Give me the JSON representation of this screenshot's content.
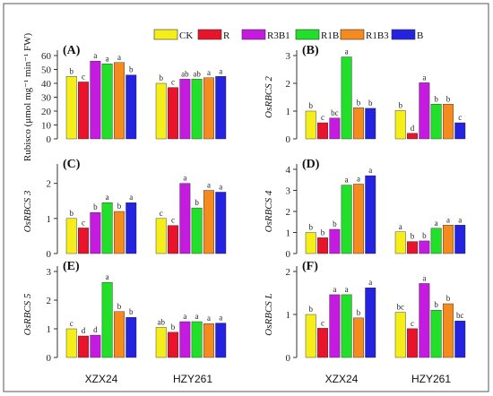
{
  "legend": [
    {
      "name": "CK",
      "color": "#f5ee1a"
    },
    {
      "name": "R",
      "color": "#e8142b"
    },
    {
      "name": "R3B1",
      "color": "#c51be0"
    },
    {
      "name": "R1B1",
      "color": "#22e02a"
    },
    {
      "name": "R1B3",
      "color": "#f58a1f"
    },
    {
      "name": "B",
      "color": "#2323e0"
    }
  ],
  "x_categories": [
    "XZX24",
    "HZY261"
  ],
  "chart_data": [
    {
      "type": "bar",
      "panel": "(A)",
      "ylabel": "Rubisco (μmol mg⁻¹ min⁻¹ FW)",
      "ylabel_italic": false,
      "categories": [
        "XZX24",
        "HZY261"
      ],
      "ylim": [
        0,
        60
      ],
      "yticks": [
        0,
        10,
        20,
        30,
        40,
        50,
        60
      ],
      "series": [
        {
          "name": "CK",
          "values": [
            45,
            40
          ],
          "letters": [
            "b",
            "b"
          ]
        },
        {
          "name": "R",
          "values": [
            41,
            37
          ],
          "letters": [
            "c",
            "c"
          ]
        },
        {
          "name": "R3B1",
          "values": [
            56,
            43
          ],
          "letters": [
            "a",
            "ab"
          ]
        },
        {
          "name": "R1B1",
          "values": [
            54,
            43
          ],
          "letters": [
            "a",
            "ab"
          ]
        },
        {
          "name": "R1B3",
          "values": [
            55,
            44
          ],
          "letters": [
            "a",
            "a"
          ]
        },
        {
          "name": "B",
          "values": [
            46,
            45
          ],
          "letters": [
            "b",
            "a"
          ]
        }
      ]
    },
    {
      "type": "bar",
      "panel": "(B)",
      "ylabel": "OsRBCS 2",
      "ylabel_italic": true,
      "categories": [
        "XZX24",
        "HZY261"
      ],
      "ylim": [
        0,
        3
      ],
      "yticks": [
        0,
        1,
        2,
        3
      ],
      "series": [
        {
          "name": "CK",
          "values": [
            1.0,
            1.02
          ],
          "letters": [
            "b",
            "b"
          ]
        },
        {
          "name": "R",
          "values": [
            0.58,
            0.2
          ],
          "letters": [
            "c",
            "d"
          ]
        },
        {
          "name": "R3B1",
          "values": [
            0.75,
            2.02
          ],
          "letters": [
            "bc",
            "a"
          ]
        },
        {
          "name": "R1B1",
          "values": [
            2.95,
            1.25
          ],
          "letters": [
            "a",
            "b"
          ]
        },
        {
          "name": "R1B3",
          "values": [
            1.12,
            1.25
          ],
          "letters": [
            "b",
            "b"
          ]
        },
        {
          "name": "B",
          "values": [
            1.1,
            0.58
          ],
          "letters": [
            "b",
            "c"
          ]
        }
      ]
    },
    {
      "type": "bar",
      "panel": "(C)",
      "ylabel": "OsRBCS 3",
      "ylabel_italic": true,
      "categories": [
        "XZX24",
        "HZY261"
      ],
      "ylim": [
        0,
        2.4
      ],
      "yticks": [
        0,
        1,
        2
      ],
      "series": [
        {
          "name": "CK",
          "values": [
            1.0,
            1.0
          ],
          "letters": [
            "b",
            "c"
          ]
        },
        {
          "name": "R",
          "values": [
            0.73,
            0.8
          ],
          "letters": [
            "c",
            "c"
          ]
        },
        {
          "name": "R3B1",
          "values": [
            1.17,
            2.0
          ],
          "letters": [
            "b",
            "a"
          ]
        },
        {
          "name": "R1B1",
          "values": [
            1.45,
            1.3
          ],
          "letters": [
            "a",
            "b"
          ]
        },
        {
          "name": "R1B3",
          "values": [
            1.2,
            1.8
          ],
          "letters": [
            "b",
            "a"
          ]
        },
        {
          "name": "B",
          "values": [
            1.45,
            1.75
          ],
          "letters": [
            "a",
            "a"
          ]
        }
      ]
    },
    {
      "type": "bar",
      "panel": "(D)",
      "ylabel": "OsRBCS 4",
      "ylabel_italic": true,
      "categories": [
        "XZX24",
        "HZY261"
      ],
      "ylim": [
        0,
        4
      ],
      "yticks": [
        0,
        1,
        2,
        3,
        4
      ],
      "series": [
        {
          "name": "CK",
          "values": [
            1.0,
            1.03
          ],
          "letters": [
            "b",
            "a"
          ]
        },
        {
          "name": "R",
          "values": [
            0.75,
            0.57
          ],
          "letters": [
            "b",
            "b"
          ]
        },
        {
          "name": "R3B1",
          "values": [
            1.15,
            0.6
          ],
          "letters": [
            "b",
            "b"
          ]
        },
        {
          "name": "R1B1",
          "values": [
            3.25,
            1.2
          ],
          "letters": [
            "a",
            "a"
          ]
        },
        {
          "name": "R1B3",
          "values": [
            3.3,
            1.35
          ],
          "letters": [
            "a",
            "a"
          ]
        },
        {
          "name": "B",
          "values": [
            3.7,
            1.35
          ],
          "letters": [
            "a",
            "a"
          ]
        }
      ]
    },
    {
      "type": "bar",
      "panel": "(E)",
      "ylabel": "OsRBCS 5",
      "ylabel_italic": true,
      "categories": [
        "XZX24",
        "HZY261"
      ],
      "ylim": [
        0,
        3
      ],
      "yticks": [
        0,
        1,
        2,
        3
      ],
      "series": [
        {
          "name": "CK",
          "values": [
            1.0,
            1.05
          ],
          "letters": [
            "c",
            "ab"
          ]
        },
        {
          "name": "R",
          "values": [
            0.75,
            0.88
          ],
          "letters": [
            "d",
            "b"
          ]
        },
        {
          "name": "R3B1",
          "values": [
            0.78,
            1.25
          ],
          "letters": [
            "d",
            "a"
          ]
        },
        {
          "name": "R1B1",
          "values": [
            2.62,
            1.25
          ],
          "letters": [
            "a",
            "a"
          ]
        },
        {
          "name": "R1B3",
          "values": [
            1.6,
            1.18
          ],
          "letters": [
            "b",
            "a"
          ]
        },
        {
          "name": "B",
          "values": [
            1.4,
            1.2
          ],
          "letters": [
            "b",
            "a"
          ]
        }
      ]
    },
    {
      "type": "bar",
      "panel": "(F)",
      "ylabel": "OsRBCS L",
      "ylabel_italic": true,
      "categories": [
        "XZX24",
        "HZY261"
      ],
      "ylim": [
        0,
        2
      ],
      "yticks": [
        0,
        1,
        2
      ],
      "series": [
        {
          "name": "CK",
          "values": [
            1.0,
            1.05
          ],
          "letters": [
            "b",
            "bc"
          ]
        },
        {
          "name": "R",
          "values": [
            0.68,
            0.67
          ],
          "letters": [
            "c",
            "c"
          ]
        },
        {
          "name": "R3B1",
          "values": [
            1.46,
            1.72
          ],
          "letters": [
            "a",
            "a"
          ]
        },
        {
          "name": "R1B1",
          "values": [
            1.46,
            1.1
          ],
          "letters": [
            "a",
            "b"
          ]
        },
        {
          "name": "R1B3",
          "values": [
            0.92,
            1.25
          ],
          "letters": [
            "b",
            "b"
          ]
        },
        {
          "name": "B",
          "values": [
            1.62,
            0.85
          ],
          "letters": [
            "a",
            "bc"
          ]
        }
      ]
    }
  ]
}
